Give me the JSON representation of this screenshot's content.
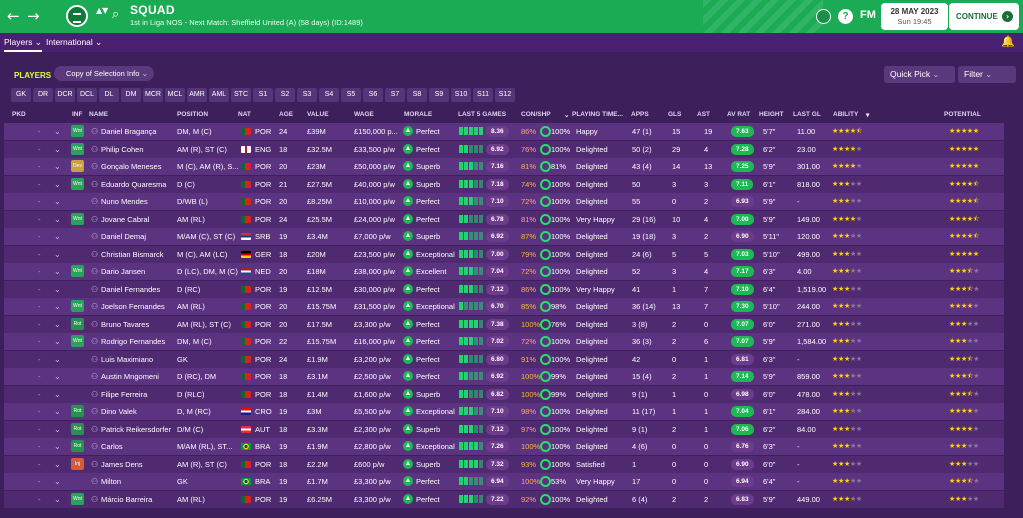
{
  "header": {
    "title": "SQUAD",
    "subtitle": "1st in Liga NOS - Next Match: Sheffield United (A) (58 days) (ID:1489)",
    "date": "28 MAY 2023",
    "time": "Sun 19:45",
    "continue_label": "CONTINUE",
    "fm_label": "FM",
    "back_icon": "←",
    "forward_icon": "→",
    "search_icon": "⌕",
    "help_icon": "?",
    "nav_arrows_icon": "▲▼"
  },
  "subnav": {
    "tabs": [
      "Players ⌄",
      "International ⌄"
    ],
    "bell_icon": "🔔"
  },
  "toolbar": {
    "players_label": "PLAYERS",
    "view_selector": "Copy of Selection Info",
    "quick_pick": "Quick Pick",
    "filter": "Filter"
  },
  "positions": [
    "GK",
    "DR",
    "DCR",
    "DCL",
    "DL",
    "DM",
    "MCR",
    "MCL",
    "AMR",
    "AML",
    "STC",
    "S1",
    "S2",
    "S3",
    "S4",
    "S5",
    "S6",
    "S7",
    "S8",
    "S9",
    "S10",
    "S11",
    "S12"
  ],
  "columns": {
    "pkd": "PKD",
    "inf": "INF",
    "name": "NAME",
    "position": "POSITION",
    "nat": "NAT",
    "age": "AGE",
    "value": "VALUE",
    "wage": "WAGE",
    "morale": "MORALE",
    "last5": "LAST 5 GAMES",
    "conshp": "CON/SHP",
    "playing_time": "PLAYING TIME...",
    "apps": "APPS",
    "gls": "GLS",
    "ast": "AST",
    "avrat": "AV RAT",
    "height": "HEIGHT",
    "lastgl": "LAST GL",
    "ability": "ABILITY",
    "potential": "POTENTIAL"
  },
  "colors": {
    "accent": "#1bab55",
    "bg": "#3d1f5c",
    "star": "#ffd400",
    "rating_green": "#1db954"
  },
  "players": [
    {
      "inf": "Wnt",
      "name": "Daniel Bragança",
      "pos": "DM, M (C)",
      "nat": "POR",
      "age": "24",
      "value": "£39M",
      "wage": "£150,000 p...",
      "morale": "Perfect",
      "form": "8.36",
      "con": "86%",
      "shp": "100%",
      "pt": "Happy",
      "apps": "47 (1)",
      "gls": "15",
      "ast": "19",
      "avr": "7.63",
      "h": "5'7\"",
      "lg": "11.00",
      "ab": 4.5,
      "pot": 5
    },
    {
      "inf": "Wnt",
      "name": "Philip Cohen",
      "pos": "AM (R), ST (C)",
      "nat": "ENG",
      "age": "18",
      "value": "£32.5M",
      "wage": "£33,500 p/w",
      "morale": "Perfect",
      "form": "6.92",
      "con": "76%",
      "shp": "100%",
      "pt": "Delighted",
      "apps": "50 (2)",
      "gls": "29",
      "ast": "4",
      "avr": "7.28",
      "h": "6'2\"",
      "lg": "23.00",
      "ab": 4,
      "pot": 5
    },
    {
      "inf": "Dev",
      "name": "Gonçalo Meneses",
      "pos": "M (C), AM (R), S...",
      "nat": "POR",
      "age": "20",
      "value": "£23M",
      "wage": "£50,000 p/w",
      "morale": "Superb",
      "form": "7.16",
      "con": "81%",
      "shp": "81%",
      "pt": "Delighted",
      "apps": "43 (4)",
      "gls": "14",
      "ast": "13",
      "avr": "7.25",
      "h": "5'9\"",
      "lg": "301.00",
      "ab": 4,
      "pot": 5
    },
    {
      "inf": "Wnt",
      "name": "Eduardo Quaresma",
      "pos": "D (C)",
      "nat": "POR",
      "age": "21",
      "value": "£27.5M",
      "wage": "£40,000 p/w",
      "morale": "Superb",
      "form": "7.18",
      "con": "74%",
      "shp": "100%",
      "pt": "Delighted",
      "apps": "50",
      "gls": "3",
      "ast": "3",
      "avr": "7.11",
      "h": "6'1\"",
      "lg": "818.00",
      "ab": 3,
      "pot": 4.5
    },
    {
      "inf": "",
      "name": "Nuno Mendes",
      "pos": "D/WB (L)",
      "nat": "POR",
      "age": "20",
      "value": "£8.25M",
      "wage": "£10,000 p/w",
      "morale": "Perfect",
      "form": "7.10",
      "con": "72%",
      "shp": "100%",
      "pt": "Delighted",
      "apps": "55",
      "gls": "0",
      "ast": "2",
      "avr": "6.93",
      "h": "5'9\"",
      "lg": "-",
      "ab": 3,
      "pot": 4.5
    },
    {
      "inf": "Wnt",
      "name": "Jovane Cabral",
      "pos": "AM (RL)",
      "nat": "POR",
      "age": "24",
      "value": "£25.5M",
      "wage": "£24,000 p/w",
      "morale": "Perfect",
      "form": "6.78",
      "con": "81%",
      "shp": "100%",
      "pt": "Very Happy",
      "apps": "29 (16)",
      "gls": "10",
      "ast": "4",
      "avr": "7.00",
      "h": "5'9\"",
      "lg": "149.00",
      "ab": 4,
      "pot": 4.5
    },
    {
      "inf": "",
      "name": "Daniel Demaj",
      "pos": "M/AM (C), ST (C)",
      "nat": "SRB",
      "age": "19",
      "value": "£3.4M",
      "wage": "£7,000 p/w",
      "morale": "Superb",
      "form": "6.92",
      "con": "87%",
      "shp": "100%",
      "pt": "Delighted",
      "apps": "19 (18)",
      "gls": "3",
      "ast": "2",
      "avr": "6.90",
      "h": "5'11\"",
      "lg": "120.00",
      "ab": 3,
      "pot": 4.5
    },
    {
      "inf": "",
      "name": "Christian Bismarck",
      "pos": "M (C), AM (LC)",
      "nat": "GER",
      "age": "18",
      "value": "£20M",
      "wage": "£23,500 p/w",
      "morale": "Exceptional",
      "form": "7.00",
      "con": "79%",
      "shp": "100%",
      "pt": "Delighted",
      "apps": "24 (6)",
      "gls": "5",
      "ast": "5",
      "avr": "7.03",
      "h": "5'10\"",
      "lg": "499.00",
      "ab": 3,
      "pot": 5
    },
    {
      "inf": "Wnt",
      "name": "Dario Jansen",
      "pos": "D (LC), DM, M (C)",
      "nat": "NED",
      "age": "20",
      "value": "£18M",
      "wage": "£38,000 p/w",
      "morale": "Excellent",
      "form": "7.04",
      "con": "72%",
      "shp": "100%",
      "pt": "Delighted",
      "apps": "52",
      "gls": "3",
      "ast": "4",
      "avr": "7.17",
      "h": "6'3\"",
      "lg": "4.00",
      "ab": 3,
      "pot": 3.5
    },
    {
      "inf": "",
      "name": "Daniel Fernandes",
      "pos": "D (RC)",
      "nat": "POR",
      "age": "19",
      "value": "£12.5M",
      "wage": "£30,000 p/w",
      "morale": "Perfect",
      "form": "7.12",
      "con": "86%",
      "shp": "100%",
      "pt": "Very Happy",
      "apps": "41",
      "gls": "1",
      "ast": "7",
      "avr": "7.10",
      "h": "6'4\"",
      "lg": "1,519.00",
      "ab": 3,
      "pot": 3.5
    },
    {
      "inf": "Wnt",
      "name": "Joelson Fernandes",
      "pos": "AM (RL)",
      "nat": "POR",
      "age": "20",
      "value": "£15.75M",
      "wage": "£31,500 p/w",
      "morale": "Exceptional",
      "form": "6.70",
      "con": "85%",
      "shp": "98%",
      "pt": "Delighted",
      "apps": "36 (14)",
      "gls": "13",
      "ast": "7",
      "avr": "7.30",
      "h": "5'10\"",
      "lg": "244.00",
      "ab": 3,
      "pot": 4
    },
    {
      "inf": "Rot",
      "name": "Bruno Tavares",
      "pos": "AM (RL), ST (C)",
      "nat": "POR",
      "age": "20",
      "value": "£17.5M",
      "wage": "£3,300 p/w",
      "morale": "Perfect",
      "form": "7.38",
      "con": "100%",
      "shp": "76%",
      "pt": "Delighted",
      "apps": "3 (8)",
      "gls": "2",
      "ast": "0",
      "avr": "7.07",
      "h": "6'0\"",
      "lg": "271.00",
      "ab": 3,
      "pot": 3
    },
    {
      "inf": "Wnt",
      "name": "Rodrigo Fernandes",
      "pos": "DM, M (C)",
      "nat": "POR",
      "age": "22",
      "value": "£15.75M",
      "wage": "£16,000 p/w",
      "morale": "Perfect",
      "form": "7.02",
      "con": "72%",
      "shp": "100%",
      "pt": "Delighted",
      "apps": "36 (3)",
      "gls": "2",
      "ast": "6",
      "avr": "7.07",
      "h": "5'9\"",
      "lg": "1,584.00",
      "ab": 3,
      "pot": 3
    },
    {
      "inf": "",
      "name": "Luis Maximiano",
      "pos": "GK",
      "nat": "POR",
      "age": "24",
      "value": "£1.9M",
      "wage": "£3,200 p/w",
      "morale": "Perfect",
      "form": "6.80",
      "con": "91%",
      "shp": "100%",
      "pt": "Delighted",
      "apps": "42",
      "gls": "0",
      "ast": "1",
      "avr": "6.81",
      "h": "6'3\"",
      "lg": "-",
      "ab": 3,
      "pot": 3.5
    },
    {
      "inf": "",
      "name": "Austin Mngomeni",
      "pos": "D (RC), DM",
      "nat": "POR",
      "age": "18",
      "value": "£3.1M",
      "wage": "£2,500 p/w",
      "morale": "Perfect",
      "form": "6.92",
      "con": "100%",
      "shp": "99%",
      "pt": "Delighted",
      "apps": "15 (4)",
      "gls": "2",
      "ast": "1",
      "avr": "7.14",
      "h": "5'9\"",
      "lg": "859.00",
      "ab": 3,
      "pot": 3.5
    },
    {
      "inf": "",
      "name": "Filipe Ferreira",
      "pos": "D (RLC)",
      "nat": "POR",
      "age": "18",
      "value": "£1.4M",
      "wage": "£1,600 p/w",
      "morale": "Superb",
      "form": "6.82",
      "con": "100%",
      "shp": "99%",
      "pt": "Delighted",
      "apps": "9 (1)",
      "gls": "1",
      "ast": "0",
      "avr": "6.98",
      "h": "6'0\"",
      "lg": "478.00",
      "ab": 3,
      "pot": 3.5
    },
    {
      "inf": "Rot",
      "name": "Dino Valek",
      "pos": "D, M (RC)",
      "nat": "CRO",
      "age": "19",
      "value": "£3M",
      "wage": "£5,500 p/w",
      "morale": "Exceptional",
      "form": "7.10",
      "con": "98%",
      "shp": "100%",
      "pt": "Delighted",
      "apps": "11 (17)",
      "gls": "1",
      "ast": "1",
      "avr": "7.04",
      "h": "6'1\"",
      "lg": "284.00",
      "ab": 3,
      "pot": 4
    },
    {
      "inf": "Rot",
      "name": "Patrick Reikersdorfer",
      "pos": "D/M (C)",
      "nat": "AUT",
      "age": "18",
      "value": "£3.3M",
      "wage": "£2,300 p/w",
      "morale": "Superb",
      "form": "7.12",
      "con": "97%",
      "shp": "100%",
      "pt": "Delighted",
      "apps": "9 (1)",
      "gls": "2",
      "ast": "1",
      "avr": "7.06",
      "h": "6'2\"",
      "lg": "84.00",
      "ab": 3,
      "pot": 4
    },
    {
      "inf": "Rot",
      "name": "Carlos",
      "pos": "M/AM (RL), ST...",
      "nat": "BRA",
      "age": "19",
      "value": "£1.9M",
      "wage": "£2,800 p/w",
      "morale": "Exceptional",
      "form": "7.26",
      "con": "100%",
      "shp": "100%",
      "pt": "Delighted",
      "apps": "4 (6)",
      "gls": "0",
      "ast": "0",
      "avr": "6.76",
      "h": "6'3\"",
      "lg": "-",
      "ab": 3,
      "pot": 3
    },
    {
      "inf": "Inj",
      "name": "James Dens",
      "pos": "AM (R), ST (C)",
      "nat": "POR",
      "age": "18",
      "value": "£2.2M",
      "wage": "£600 p/w",
      "morale": "Superb",
      "form": "7.32",
      "con": "93%",
      "shp": "100%",
      "pt": "Satisfied",
      "apps": "1",
      "gls": "0",
      "ast": "0",
      "avr": "6.90",
      "h": "6'0\"",
      "lg": "-",
      "ab": 3,
      "pot": 3
    },
    {
      "inf": "",
      "name": "Milton",
      "pos": "GK",
      "nat": "BRA",
      "age": "19",
      "value": "£1.7M",
      "wage": "£3,300 p/w",
      "morale": "Perfect",
      "form": "6.94",
      "con": "100%",
      "shp": "53%",
      "pt": "Very Happy",
      "apps": "17",
      "gls": "0",
      "ast": "0",
      "avr": "6.94",
      "h": "6'4\"",
      "lg": "-",
      "ab": 3,
      "pot": 3.5
    },
    {
      "inf": "Wnt",
      "name": "Márcio Barreira",
      "pos": "AM (RL)",
      "nat": "POR",
      "age": "19",
      "value": "£6.25M",
      "wage": "£3,300 p/w",
      "morale": "Perfect",
      "form": "7.22",
      "con": "92%",
      "shp": "100%",
      "pt": "Delighted",
      "apps": "6 (4)",
      "gls": "2",
      "ast": "2",
      "avr": "6.83",
      "h": "5'9\"",
      "lg": "449.00",
      "ab": 3,
      "pot": 3
    }
  ]
}
